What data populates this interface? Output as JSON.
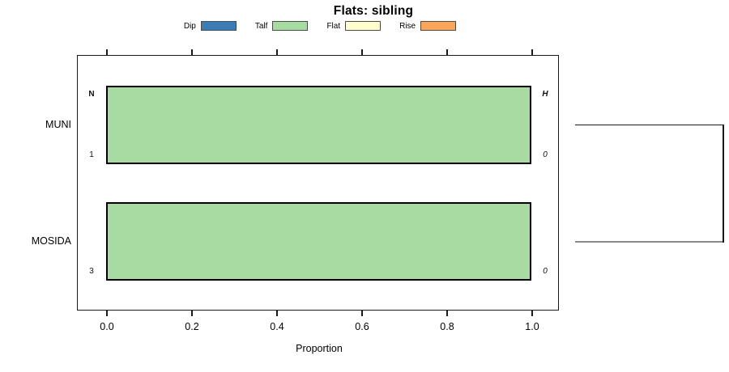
{
  "title": "Flats: sibling",
  "legend": {
    "items": [
      {
        "label": "Dip",
        "color": "#3a7db5"
      },
      {
        "label": "Talf",
        "color": "#a8dba2"
      },
      {
        "label": "Flat",
        "color": "#feffcc"
      },
      {
        "label": "Rise",
        "color": "#f9a55a"
      }
    ]
  },
  "chart_data": {
    "type": "bar",
    "orientation": "horizontal",
    "stacked": true,
    "title": "Flats: sibling",
    "xlabel": "Proportion",
    "xlim": [
      0.0,
      1.0
    ],
    "xticks": [
      "0.0",
      "0.2",
      "0.4",
      "0.6",
      "0.8",
      "1.0"
    ],
    "xtick_values": [
      0.0,
      0.2,
      0.4,
      0.6,
      0.8,
      1.0
    ],
    "grid": false,
    "legend_position": "top",
    "categories": [
      "MUNI",
      "MOSIDA"
    ],
    "series": [
      {
        "name": "Talf",
        "color": "#a8dba2",
        "values": [
          1.0,
          1.0
        ]
      }
    ],
    "annotations": {
      "left_header": "N",
      "right_header": "H",
      "rows": [
        {
          "category": "MUNI",
          "N": "1",
          "H": "0"
        },
        {
          "category": "MOSIDA",
          "N": "3",
          "H": "0"
        }
      ]
    }
  },
  "dendrogram": {
    "joined_leaves": [
      "MUNI",
      "MOSIDA"
    ],
    "branch_colors": [
      "#1a1a1a",
      "#8a8a8a"
    ],
    "joint_color": "#1a1a1a"
  }
}
